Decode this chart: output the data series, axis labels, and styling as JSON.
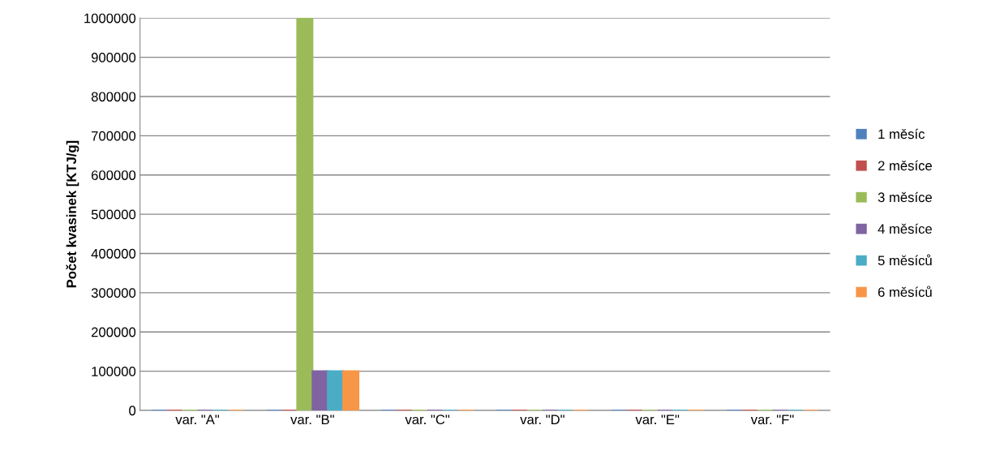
{
  "chart_data": {
    "type": "bar",
    "ylabel": "Počet kvasinek [KTJ/g]",
    "categories": [
      "var. \"A\"",
      "var. \"B\"",
      "var. \"C\"",
      "var. \"D\"",
      "var. \"E\"",
      "var. \"F\""
    ],
    "series": [
      {
        "name": "1 měsíc",
        "color": "#4f81bd",
        "values": [
          0,
          0,
          0,
          0,
          0,
          0
        ]
      },
      {
        "name": "2 měsíce",
        "color": "#c0504d",
        "values": [
          0,
          0,
          0,
          0,
          0,
          0
        ]
      },
      {
        "name": "3 měsíce",
        "color": "#9bbb59",
        "values": [
          0,
          1000000,
          0,
          0,
          0,
          0
        ]
      },
      {
        "name": "4 měsíce",
        "color": "#8064a2",
        "values": [
          0,
          100000,
          0,
          0,
          0,
          0
        ]
      },
      {
        "name": "5 měsíců",
        "color": "#4bacc6",
        "values": [
          0,
          100000,
          0,
          0,
          0,
          0
        ]
      },
      {
        "name": "6 měsíců",
        "color": "#f79646",
        "values": [
          0,
          100000,
          0,
          0,
          0,
          0
        ]
      }
    ],
    "ylim": [
      0,
      1000000
    ],
    "yticks": [
      0,
      100000,
      200000,
      300000,
      400000,
      500000,
      600000,
      700000,
      800000,
      900000,
      1000000
    ],
    "grid": "y",
    "legend": "right"
  }
}
